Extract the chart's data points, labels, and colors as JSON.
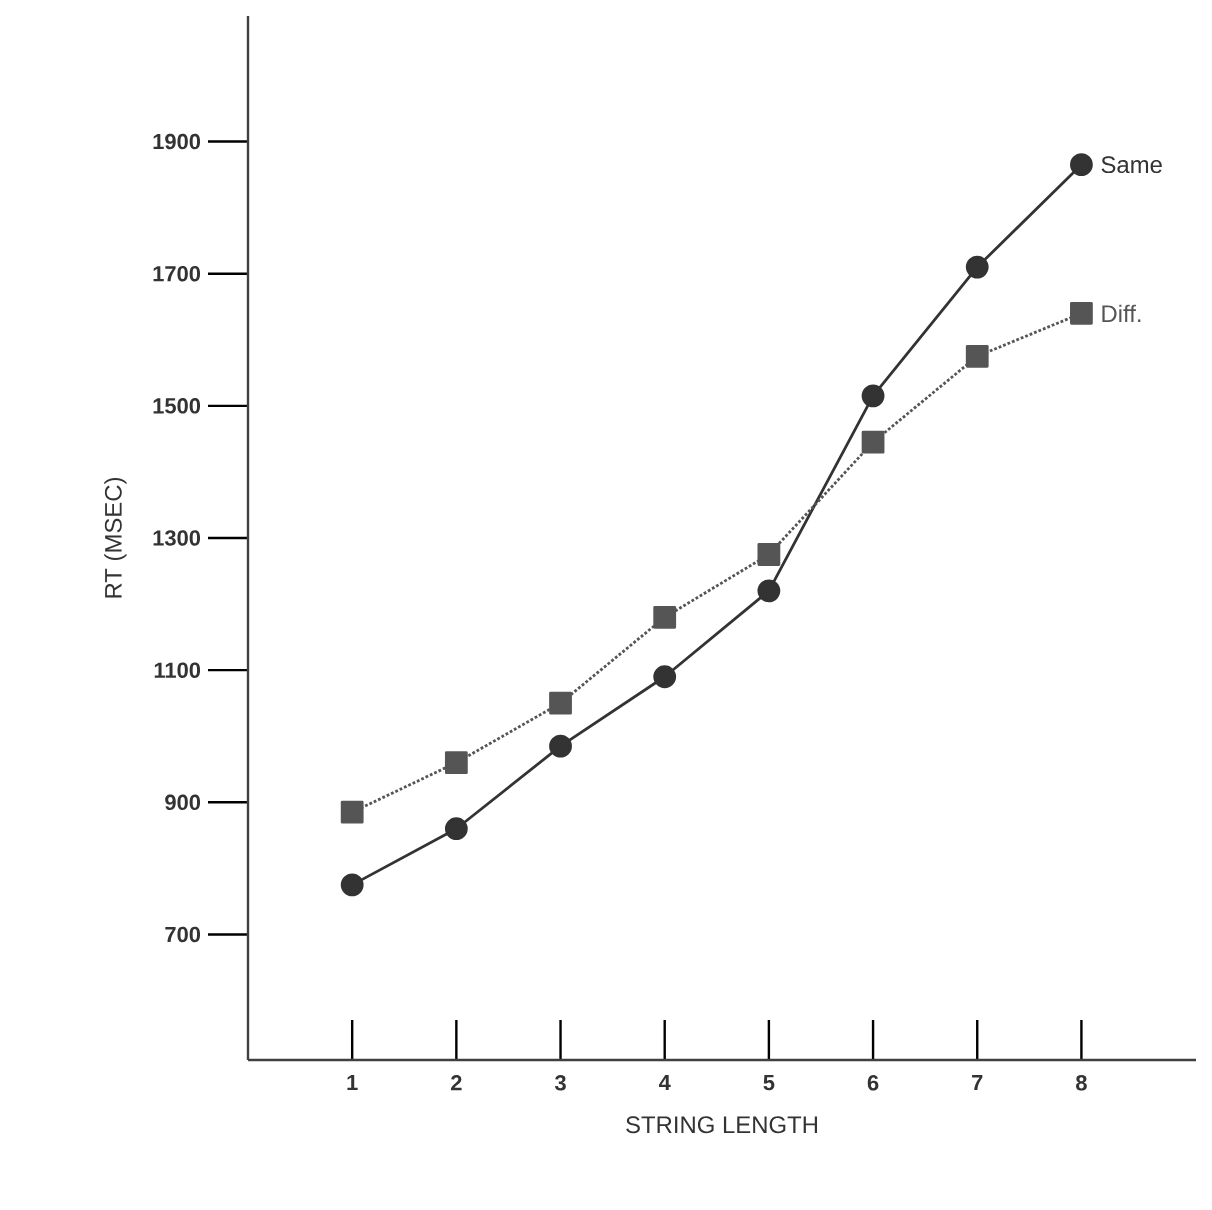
{
  "chart_data": {
    "type": "line",
    "xlabel": "STRING LENGTH",
    "ylabel": "RT (MSEC)",
    "x": [
      1,
      2,
      3,
      4,
      5,
      6,
      7,
      8
    ],
    "xlim": [
      0,
      9.1
    ],
    "xticks": [
      1,
      2,
      3,
      4,
      5,
      6,
      7,
      8
    ],
    "ylim": [
      510,
      2090
    ],
    "yticks": [
      700,
      900,
      1100,
      1300,
      1500,
      1700,
      1900
    ],
    "grid": false,
    "legend": false,
    "series": [
      {
        "name": "Same",
        "color": "#333333",
        "marker": "circle",
        "line_style": "solid",
        "values": [
          775,
          860,
          985,
          1090,
          1220,
          1515,
          1710,
          1865
        ]
      },
      {
        "name": "Diff.",
        "color": "#555555",
        "marker": "square",
        "line_style": "dotted",
        "values": [
          885,
          960,
          1050,
          1180,
          1275,
          1445,
          1575,
          1640
        ]
      }
    ]
  }
}
